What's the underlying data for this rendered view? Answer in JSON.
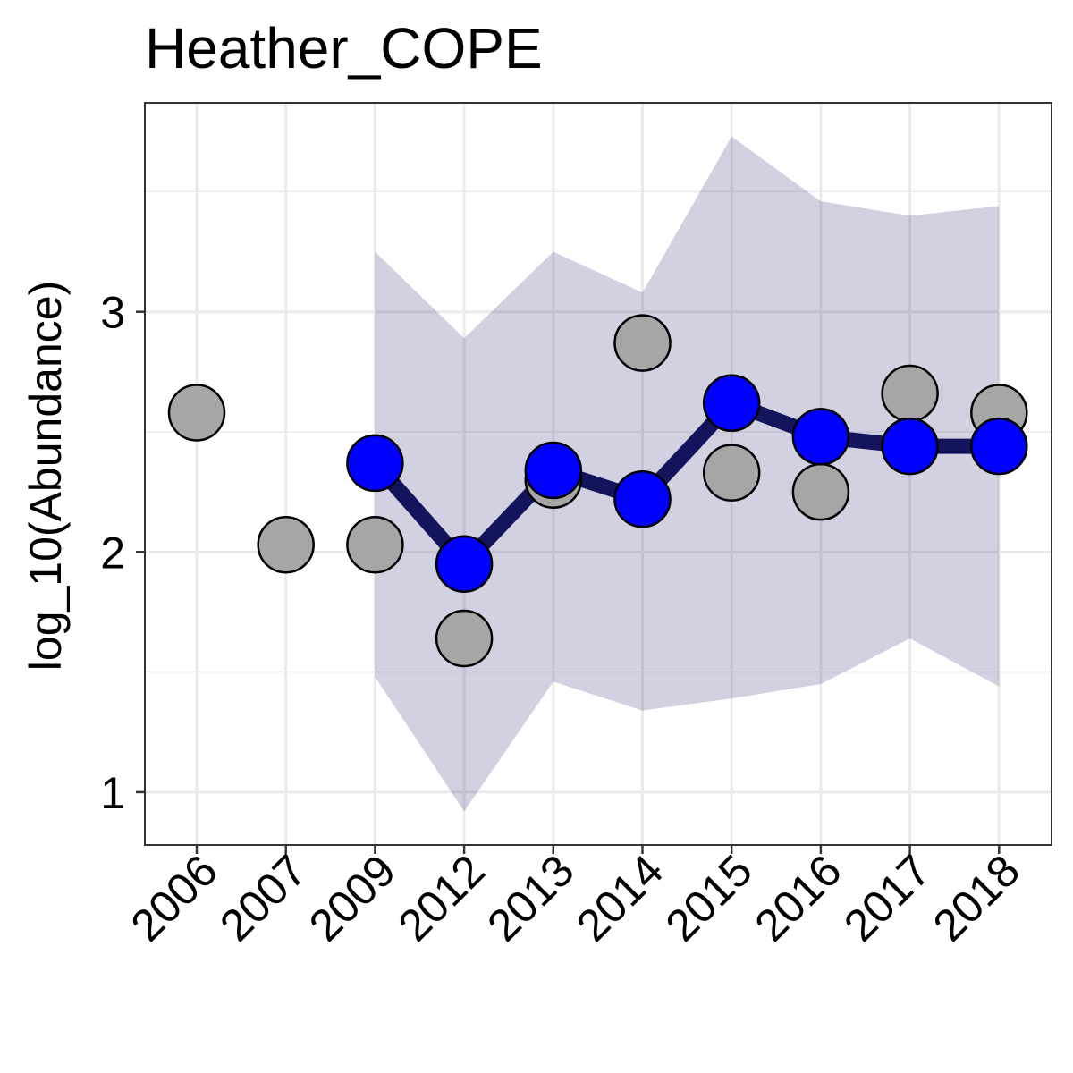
{
  "chart_data": {
    "type": "line",
    "title": "Heather_COPE",
    "xlabel": "",
    "ylabel": "log_10(Abundance)",
    "categories": [
      "2006",
      "2007",
      "2009",
      "2012",
      "2013",
      "2014",
      "2015",
      "2016",
      "2017",
      "2018"
    ],
    "ylim": [
      0.78,
      3.87
    ],
    "yticks": [
      1,
      2,
      3
    ],
    "grid": true,
    "legend": "none",
    "series": [
      {
        "kind": "observed-points",
        "color": "#a6a6a6",
        "values": [
          2.58,
          2.03,
          2.03,
          1.64,
          2.3,
          2.87,
          2.33,
          2.25,
          2.66,
          2.58
        ]
      },
      {
        "kind": "fitted-line",
        "color": "#0000ff",
        "line_color": "#14145c",
        "values": [
          null,
          null,
          2.37,
          1.95,
          2.34,
          2.22,
          2.62,
          2.48,
          2.44,
          2.44
        ]
      },
      {
        "kind": "interval-band",
        "color": "#d0d0e1",
        "lower": [
          null,
          null,
          1.48,
          0.92,
          1.46,
          1.34,
          1.39,
          1.45,
          1.64,
          1.44
        ],
        "upper": [
          null,
          null,
          3.25,
          2.89,
          3.25,
          3.08,
          3.73,
          3.46,
          3.4,
          3.44
        ]
      }
    ]
  }
}
